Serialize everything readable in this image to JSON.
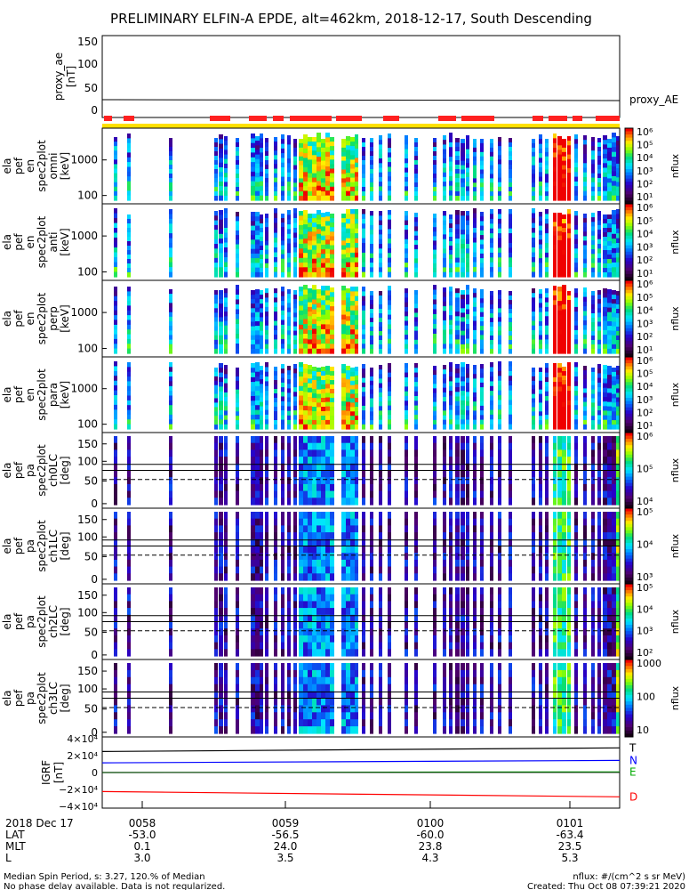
{
  "title": "PRELIMINARY ELFIN-A EPDE, alt=462km, 2018-12-17, South Descending",
  "colors": {
    "frame": "#000000",
    "red": "#ff2020",
    "yellow": "#ffe000",
    "ae_line": "#000000",
    "igrf_T": "#000000",
    "igrf_N": "#0000ff",
    "igrf_E": "#00aa00",
    "igrf_D": "#ff0000"
  },
  "proxy_ae": {
    "ylabel_lines": [
      "proxy_ae",
      "[nT]"
    ],
    "series_label": "proxy_AE",
    "ticks": [
      "150",
      "100",
      "50",
      "0"
    ]
  },
  "spectra": [
    {
      "label_lines": [
        "ela",
        "pef",
        "en",
        "spec2plot",
        "omni",
        "[keV]"
      ],
      "kind": "en",
      "ticks": [
        "1000",
        "100"
      ],
      "cbar_ticks": [
        "10⁶",
        "10⁵",
        "10⁴",
        "10³",
        "10²",
        "10¹"
      ],
      "cbar_unit": "nflux"
    },
    {
      "label_lines": [
        "ela",
        "pef",
        "en",
        "spec2plot",
        "anti",
        "[keV]"
      ],
      "kind": "en",
      "ticks": [
        "1000",
        "100"
      ],
      "cbar_ticks": [
        "10⁶",
        "10⁵",
        "10⁴",
        "10³",
        "10²",
        "10¹"
      ],
      "cbar_unit": "nflux"
    },
    {
      "label_lines": [
        "ela",
        "pef",
        "en",
        "spec2plot",
        "perp",
        "[keV]"
      ],
      "kind": "en",
      "ticks": [
        "1000",
        "100"
      ],
      "cbar_ticks": [
        "10⁶",
        "10⁵",
        "10⁴",
        "10³",
        "10²",
        "10¹"
      ],
      "cbar_unit": "nflux"
    },
    {
      "label_lines": [
        "ela",
        "pef",
        "en",
        "spec2plot",
        "para",
        "[keV]"
      ],
      "kind": "en",
      "ticks": [
        "1000",
        "100"
      ],
      "cbar_ticks": [
        "10⁶",
        "10⁵",
        "10⁴",
        "10³",
        "10²",
        "10¹"
      ],
      "cbar_unit": "nflux"
    },
    {
      "label_lines": [
        "ela",
        "pef",
        "pa",
        "spec2plot",
        "ch0LC",
        "[deg]"
      ],
      "kind": "pa",
      "ticks": [
        "150",
        "100",
        "50",
        "0"
      ],
      "cbar_ticks": [
        "10⁶",
        "10⁵",
        "10⁴"
      ],
      "cbar_unit": "nflux"
    },
    {
      "label_lines": [
        "ela",
        "pef",
        "pa",
        "spec2plot",
        "ch1LC",
        "[deg]"
      ],
      "kind": "pa",
      "ticks": [
        "150",
        "100",
        "50",
        "0"
      ],
      "cbar_ticks": [
        "10⁵",
        "10⁴",
        "10³"
      ],
      "cbar_unit": "nflux"
    },
    {
      "label_lines": [
        "ela",
        "pef",
        "pa",
        "spec2plot",
        "ch2LC",
        "[deg]"
      ],
      "kind": "pa",
      "ticks": [
        "150",
        "100",
        "50",
        "0"
      ],
      "cbar_ticks": [
        "10⁵",
        "10⁴",
        "10³",
        "10²"
      ],
      "cbar_unit": "nflux"
    },
    {
      "label_lines": [
        "ela",
        "pef",
        "pa",
        "spec2plot",
        "ch3LC",
        "[deg]"
      ],
      "kind": "pa",
      "ticks": [
        "150",
        "100",
        "50",
        "0"
      ],
      "cbar_ticks": [
        "1000",
        "100",
        "10"
      ],
      "cbar_unit": "nflux"
    }
  ],
  "igrf": {
    "ylabel_lines": [
      "IGRF",
      "[nT]"
    ],
    "ticks": [
      "4×10⁴",
      "2×10⁴",
      "0",
      "−2×10⁴",
      "−4×10⁴"
    ],
    "components": [
      {
        "name": "T",
        "start": 26000,
        "end": 30500
      },
      {
        "name": "N",
        "start": 12000,
        "end": 15000
      },
      {
        "name": "E",
        "start": 0,
        "end": 800
      },
      {
        "name": "D",
        "start": -23500,
        "end": -30000
      }
    ]
  },
  "time_axis": {
    "date_label": "2018 Dec 17",
    "row_labels": [
      "LAT",
      "MLT",
      "L"
    ],
    "ticks": [
      {
        "time": "0058",
        "lat": "-53.0",
        "mlt": "0.1",
        "l": "3.0"
      },
      {
        "time": "0059",
        "lat": "-56.5",
        "mlt": "24.0",
        "l": "3.5"
      },
      {
        "time": "0100",
        "lat": "-60.0",
        "mlt": "23.8",
        "l": "4.3"
      },
      {
        "time": "0101",
        "lat": "-63.4",
        "mlt": "23.5",
        "l": "5.3"
      }
    ]
  },
  "footer": {
    "left1": "Median Spin Period, s: 3.27, 120.% of Median",
    "left2": "No phase delay available. Data is not regularized.",
    "right1": "nflux: #/(cm^2 s sr MeV)",
    "right2": "Created: Thu Oct 08 07:39:21 2020"
  }
}
